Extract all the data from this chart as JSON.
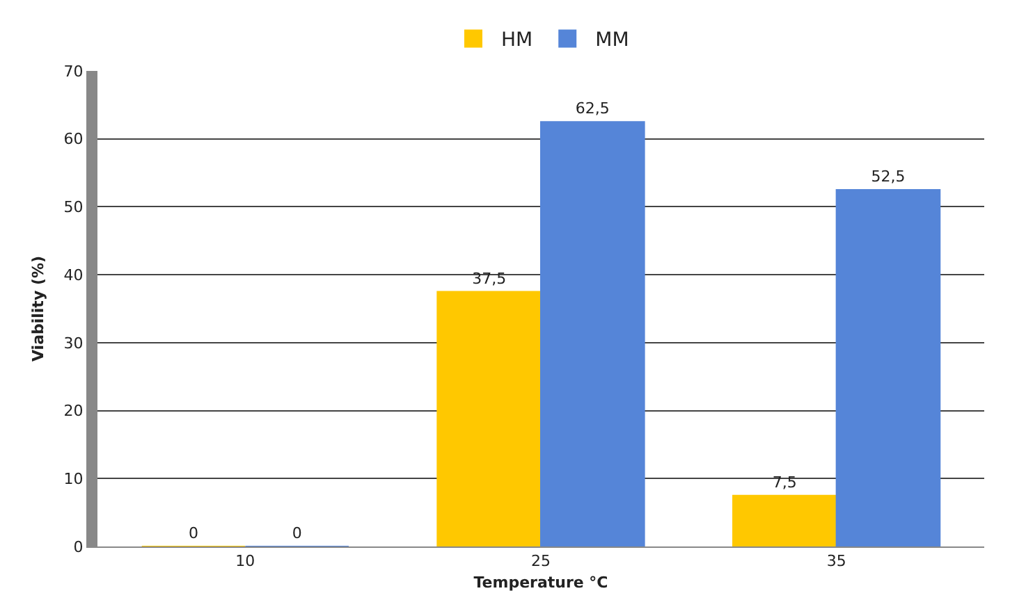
{
  "chart_data": {
    "type": "bar",
    "xlabel": "Temperature °C",
    "ylabel": "Viability (%)",
    "categories": [
      "10",
      "25",
      "35"
    ],
    "series": [
      {
        "name": "HM",
        "color": "#ffc800",
        "values": [
          0,
          37.5,
          7.5
        ],
        "value_labels": [
          "0",
          "37,5",
          "7,5"
        ]
      },
      {
        "name": "MM",
        "color": "#5585d8",
        "values": [
          0,
          62.5,
          52.5
        ],
        "value_labels": [
          "0",
          "62,5",
          "52,5"
        ]
      }
    ],
    "ylim": [
      0,
      70
    ],
    "yticks": [
      0,
      10,
      20,
      30,
      40,
      50,
      60,
      70
    ],
    "grid": "y",
    "legend": "top"
  }
}
